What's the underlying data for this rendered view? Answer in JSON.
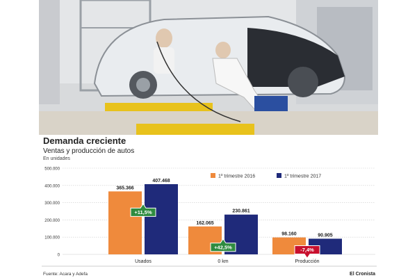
{
  "header": {
    "title": "Demanda creciente",
    "subtitle": "Ventas y producción de autos",
    "units": "En unidades"
  },
  "footer": {
    "source": "Fuente: Acara y Adefa",
    "brand": "El Cronista"
  },
  "colors": {
    "series_2016": "#ef8a3c",
    "series_2017": "#1f2a7a",
    "badge_up": "#2e8b3f",
    "badge_down": "#c8102e",
    "grid": "#cccccc"
  },
  "chart_data": {
    "type": "bar",
    "categories": [
      "Usados",
      "0 km",
      "Producción"
    ],
    "series": [
      {
        "name": "1º trimestre 2016",
        "values": [
          365366,
          162065,
          98160
        ],
        "labels": [
          "365.366",
          "162.065",
          "98.160"
        ]
      },
      {
        "name": "1º trimestre 2017",
        "values": [
          407468,
          230861,
          90905
        ],
        "labels": [
          "407.468",
          "230.861",
          "90.905"
        ]
      }
    ],
    "changes": [
      {
        "label": "+11,5%",
        "direction": "up"
      },
      {
        "label": "+42,5%",
        "direction": "up"
      },
      {
        "label": "-7,4%",
        "direction": "down"
      }
    ],
    "ylim": [
      0,
      500000
    ],
    "yticks": [
      0,
      100000,
      200000,
      300000,
      400000,
      500000
    ],
    "ytick_labels": [
      "0",
      "100.000",
      "200.000",
      "300.000",
      "400.000",
      "500.000"
    ],
    "legend_position": "top-right",
    "grid": true
  }
}
